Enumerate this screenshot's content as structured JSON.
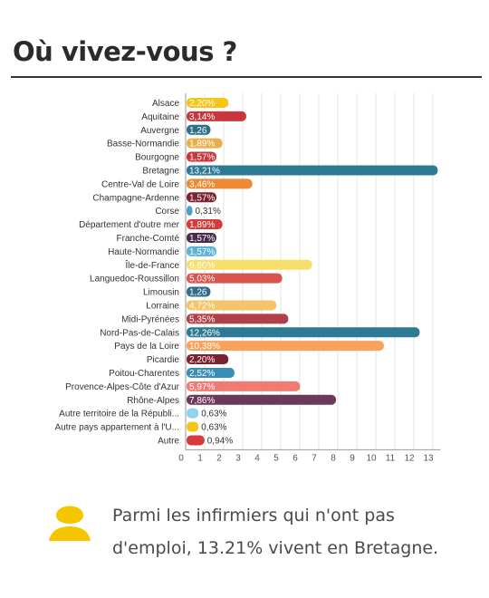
{
  "title": "Où vivez-vous ?",
  "callout": {
    "text": "Parmi les infirmiers qui n'ont pas d'emploi, 13.21% vivent en Bretagne.",
    "icon": "person-icon",
    "icon_color": "#f5c500"
  },
  "chart_data": {
    "type": "bar",
    "orientation": "horizontal",
    "categories": [
      "Alsace",
      "Aquitaine",
      "Auvergne",
      "Basse-Normandie",
      "Bourgogne",
      "Bretagne",
      "Centre-Val de Loire",
      "Champagne-Ardenne",
      "Corse",
      "Département d'outre mer",
      "Franche-Comté",
      "Haute-Normandie",
      "Île-de-France",
      "Languedoc-Roussillon",
      "Limousin",
      "Lorraine",
      "Midi-Pyrénées",
      "Nord-Pas-de-Calais",
      "Pays de la Loire",
      "Picardie",
      "Poitou-Charentes",
      "Provence-Alpes-Côte d'Azur",
      "Rhône-Alpes",
      "Autre territoire de la Républi...",
      "Autre pays appartement à l'U...",
      "Autre"
    ],
    "values": [
      2.2,
      3.14,
      1.26,
      1.89,
      1.57,
      13.21,
      3.46,
      1.57,
      0.31,
      1.89,
      1.57,
      1.57,
      6.6,
      5.03,
      1.26,
      4.72,
      5.35,
      12.26,
      10.38,
      2.2,
      2.52,
      5.97,
      7.86,
      0.63,
      0.63,
      0.94
    ],
    "labels": [
      "2,20%",
      "3,14%",
      "1,26",
      "1,89%",
      "1,57%",
      "13,21%",
      "3,46%",
      "1,57%",
      "0,31%",
      "1,89%",
      "1,57%",
      "1,57%",
      "6,60%",
      "5,03%",
      "1,26",
      "4,72%",
      "5,35%",
      "12,26%",
      "10,38%",
      "2,20%",
      "2,52%",
      "5,97%",
      "7,86%",
      "0,63%",
      "0,63%",
      "0,94%"
    ],
    "colors": [
      "#f5c518",
      "#c9373c",
      "#2e6e87",
      "#e8b04b",
      "#c9373c",
      "#2e7a94",
      "#ee8a34",
      "#7a2230",
      "#4aa0c9",
      "#d63a3a",
      "#4b2a4f",
      "#5cb3d6",
      "#f7df6a",
      "#d9534f",
      "#2e6e87",
      "#f3c468",
      "#b0404a",
      "#2e7a94",
      "#f7a35c",
      "#7a2230",
      "#3a8db5",
      "#f07b72",
      "#6b3a5a",
      "#8fd3ee",
      "#f5c518",
      "#d63a3a"
    ],
    "xticks": [
      0,
      1,
      2,
      3,
      4,
      5,
      6,
      7,
      8,
      9,
      10,
      11,
      12,
      13
    ],
    "xlim": [
      0,
      13.5
    ]
  }
}
